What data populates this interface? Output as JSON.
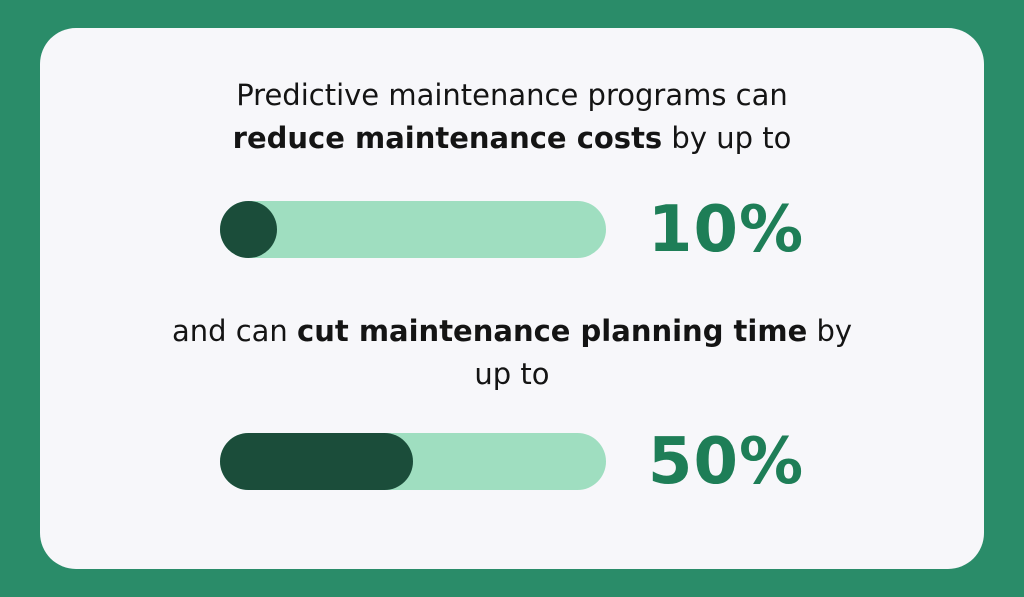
{
  "card": {
    "statement1": {
      "line1": "Predictive maintenance programs can",
      "line2_bold": "reduce maintenance costs",
      "line2_rest": " by up to"
    },
    "statement2": {
      "line1_pre": "and can ",
      "line1_bold": "cut maintenance planning time",
      "line1_post": " by",
      "line2": "up to"
    }
  },
  "bars": [
    {
      "name": "maintenance-cost-reduction",
      "percent": 10,
      "value_label": "10%"
    },
    {
      "name": "planning-time-reduction",
      "percent": 50,
      "value_label": "50%"
    }
  ],
  "colors": {
    "background": "#2a8c69",
    "card": "#f7f7fa",
    "bar_track": "#9fdec0",
    "bar_fill": "#1b4d3a",
    "value_text": "#1e7e57",
    "body_text": "#141414"
  },
  "chart_data": {
    "type": "bar",
    "categories": [
      "reduce maintenance costs",
      "cut maintenance planning time"
    ],
    "values": [
      10,
      50
    ],
    "value_labels": [
      "10%",
      "50%"
    ],
    "title": "Predictive maintenance programs can reduce maintenance costs by up to 10% and can cut maintenance planning time by up to 50%",
    "xlabel": "",
    "ylabel": "",
    "xlim": [
      0,
      100
    ],
    "grid": false,
    "legend": false,
    "orientation": "horizontal"
  }
}
